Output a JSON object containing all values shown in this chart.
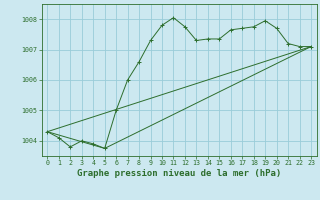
{
  "title": "Graphe pression niveau de la mer (hPa)",
  "background_color": "#cce8f0",
  "grid_color": "#99ccd9",
  "line_color": "#2d6e2d",
  "marker_color": "#2d6e2d",
  "x_ticks": [
    0,
    1,
    2,
    3,
    4,
    5,
    6,
    7,
    8,
    9,
    10,
    11,
    12,
    13,
    14,
    15,
    16,
    17,
    18,
    19,
    20,
    21,
    22,
    23
  ],
  "y_ticks": [
    1004,
    1005,
    1006,
    1007,
    1008
  ],
  "ylim": [
    1003.5,
    1008.5
  ],
  "xlim": [
    -0.5,
    23.5
  ],
  "series1_x": [
    0,
    1,
    2,
    3,
    4,
    5,
    6,
    7,
    8,
    9,
    10,
    11,
    12,
    13,
    14,
    15,
    16,
    17,
    18,
    19,
    20,
    21,
    22,
    23
  ],
  "series1_y": [
    1004.3,
    1004.1,
    1003.8,
    1004.0,
    1003.9,
    1003.75,
    1005.0,
    1006.0,
    1006.6,
    1007.3,
    1007.8,
    1008.05,
    1007.75,
    1007.3,
    1007.35,
    1007.35,
    1007.65,
    1007.7,
    1007.75,
    1007.95,
    1007.7,
    1007.2,
    1007.1,
    1007.1
  ],
  "series2_x": [
    0,
    5,
    23
  ],
  "series2_y": [
    1004.3,
    1003.75,
    1007.1
  ],
  "series3_x": [
    0,
    23
  ],
  "series3_y": [
    1004.3,
    1007.1
  ],
  "title_fontsize": 6.5,
  "tick_fontsize": 4.8
}
